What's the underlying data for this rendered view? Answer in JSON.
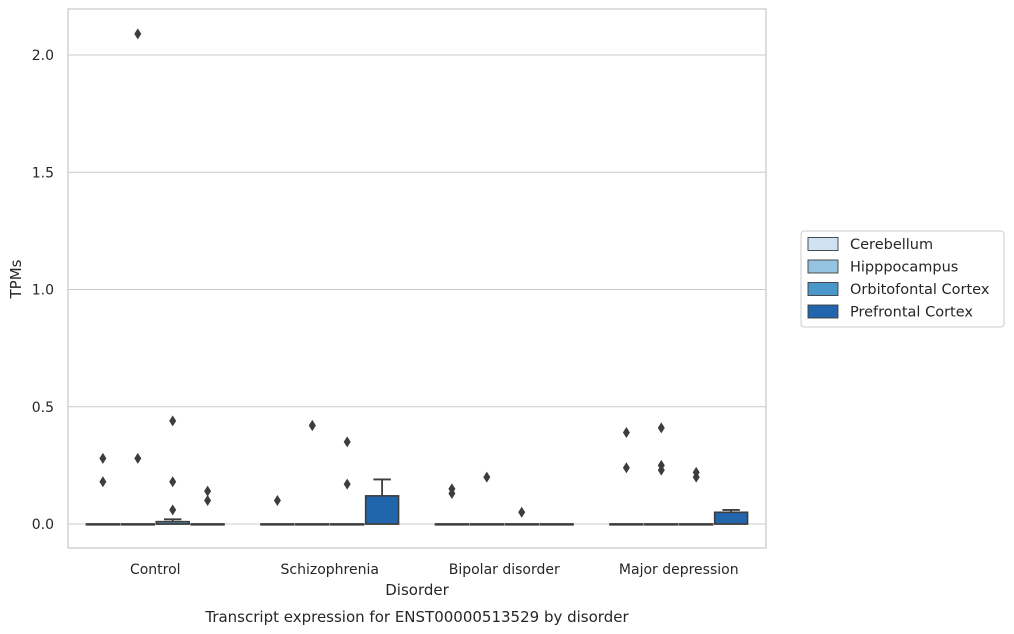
{
  "chart_data": {
    "type": "box",
    "title": "",
    "caption": "Transcript expression for ENST00000513529 by disorder",
    "xlabel": "Disorder",
    "ylabel": "TPMs",
    "ylim": [
      -0.1,
      2.2
    ],
    "yticks": [
      0.0,
      0.5,
      1.0,
      1.5,
      2.0
    ],
    "ytick_labels": [
      "0.0",
      "0.5",
      "1.0",
      "1.5",
      "2.0"
    ],
    "grid": "horizontal",
    "legend_position": "right",
    "categories": [
      "Control",
      "Schizophrenia",
      "Bipolar disorder",
      "Major depression"
    ],
    "series": [
      {
        "name": "Cerebellum",
        "color": "#d0e1f2",
        "boxes": [
          {
            "q1": 0,
            "median": 0,
            "q3": 0,
            "whisker_low": 0,
            "whisker_high": 0,
            "outliers": [
              0.18,
              0.28
            ]
          },
          {
            "q1": 0,
            "median": 0,
            "q3": 0,
            "whisker_low": 0,
            "whisker_high": 0,
            "outliers": [
              0.1
            ]
          },
          {
            "q1": 0,
            "median": 0,
            "q3": 0,
            "whisker_low": 0,
            "whisker_high": 0,
            "outliers": [
              0.13,
              0.15
            ]
          },
          {
            "q1": 0,
            "median": 0,
            "q3": 0,
            "whisker_low": 0,
            "whisker_high": 0,
            "outliers": [
              0.24,
              0.39
            ]
          }
        ]
      },
      {
        "name": "Hipppocampus",
        "color": "#94c4df",
        "boxes": [
          {
            "q1": 0,
            "median": 0,
            "q3": 0,
            "whisker_low": 0,
            "whisker_high": 0,
            "outliers": [
              2.09,
              0.28
            ]
          },
          {
            "q1": 0,
            "median": 0,
            "q3": 0,
            "whisker_low": 0,
            "whisker_high": 0,
            "outliers": [
              0.42,
              0.42
            ]
          },
          {
            "q1": 0,
            "median": 0,
            "q3": 0,
            "whisker_low": 0,
            "whisker_high": 0,
            "outliers": [
              0.2
            ]
          },
          {
            "q1": 0,
            "median": 0,
            "q3": 0,
            "whisker_low": 0,
            "whisker_high": 0,
            "outliers": [
              0.41,
              0.25,
              0.23
            ]
          }
        ]
      },
      {
        "name": "Orbitofontal Cortex",
        "color": "#4a98c9",
        "boxes": [
          {
            "q1": 0,
            "median": 0,
            "q3": 0.01,
            "whisker_low": 0,
            "whisker_high": 0.02,
            "outliers": [
              0.44,
              0.18,
              0.06
            ]
          },
          {
            "q1": 0,
            "median": 0,
            "q3": 0,
            "whisker_low": 0,
            "whisker_high": 0,
            "outliers": [
              0.35,
              0.17
            ]
          },
          {
            "q1": 0,
            "median": 0,
            "q3": 0,
            "whisker_low": 0,
            "whisker_high": 0,
            "outliers": [
              0.05
            ]
          },
          {
            "q1": 0,
            "median": 0,
            "q3": 0,
            "whisker_low": 0,
            "whisker_high": 0,
            "outliers": [
              0.22,
              0.2
            ]
          }
        ]
      },
      {
        "name": "Prefrontal Cortex",
        "color": "#2166ac",
        "boxes": [
          {
            "q1": 0,
            "median": 0,
            "q3": 0,
            "whisker_low": 0,
            "whisker_high": 0,
            "outliers": [
              0.14,
              0.1
            ]
          },
          {
            "q1": 0,
            "median": 0,
            "q3": 0.12,
            "whisker_low": 0,
            "whisker_high": 0.19,
            "outliers": []
          },
          {
            "q1": 0,
            "median": 0,
            "q3": 0,
            "whisker_low": 0,
            "whisker_high": 0,
            "outliers": []
          },
          {
            "q1": 0,
            "median": 0,
            "q3": 0.05,
            "whisker_low": 0,
            "whisker_high": 0.06,
            "outliers": []
          }
        ]
      }
    ]
  }
}
